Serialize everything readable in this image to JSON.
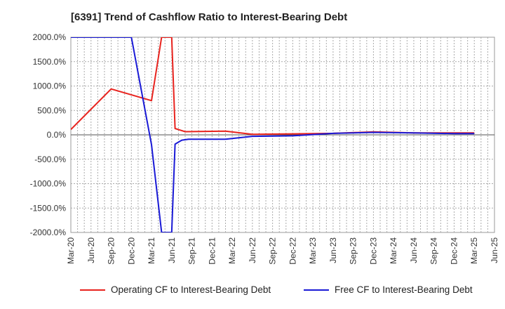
{
  "chart_data": {
    "type": "line",
    "title": "[6391]  Trend of Cashflow Ratio to Interest-Bearing Debt",
    "xlabel": "",
    "ylabel": "",
    "ylim": [
      -2000,
      2000
    ],
    "y_ticks": [
      2000,
      1500,
      1000,
      500,
      0,
      -500,
      -1000,
      -1500,
      -2000
    ],
    "y_tick_labels": [
      "2000.0%",
      "1500.0%",
      "1000.0%",
      "500.0%",
      "0.0%",
      "-500.0%",
      "-1000.0%",
      "-1500.0%",
      "-2000.0%"
    ],
    "x_tick_labels": [
      "Mar-20",
      "Jun-20",
      "Sep-20",
      "Dec-20",
      "Mar-21",
      "Jun-21",
      "Sep-21",
      "Dec-21",
      "Mar-22",
      "Jun-22",
      "Sep-22",
      "Dec-22",
      "Mar-23",
      "Jun-23",
      "Sep-23",
      "Dec-23",
      "Mar-24",
      "Jun-24",
      "Sep-24",
      "Dec-24",
      "Mar-25",
      "Jun-25"
    ],
    "x_range_months": [
      0,
      63
    ],
    "grid": true,
    "legend_position": "bottom",
    "series": [
      {
        "name": "Operating CF to Interest-Bearing Debt",
        "color": "#e8231e",
        "x_months": [
          0,
          6,
          12,
          13.5,
          15,
          15.5,
          17,
          23,
          27,
          33,
          39,
          45,
          51,
          57,
          60
        ],
        "values": [
          110,
          940,
          700,
          2000,
          2000,
          130,
          65,
          75,
          10,
          20,
          30,
          60,
          40,
          40,
          40
        ]
      },
      {
        "name": "Free CF to Interest-Bearing Debt",
        "color": "#1a1ad6",
        "x_months": [
          0,
          9,
          12,
          13.5,
          15,
          15.5,
          16.5,
          17.5,
          23,
          27,
          33,
          39,
          45,
          51,
          57,
          60
        ],
        "values": [
          2000,
          2000,
          -200,
          -2000,
          -2000,
          -190,
          -110,
          -90,
          -90,
          -30,
          -20,
          30,
          50,
          40,
          25,
          25
        ]
      }
    ]
  }
}
